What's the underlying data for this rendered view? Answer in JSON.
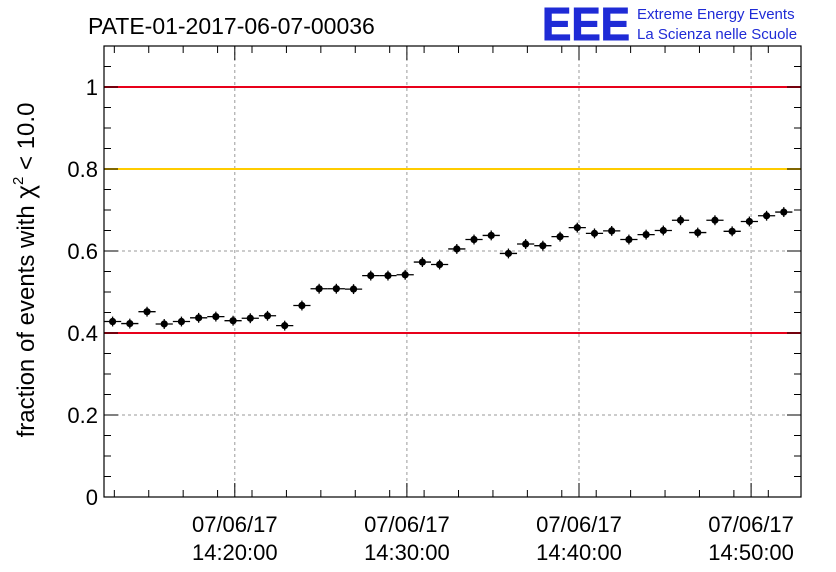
{
  "header": {
    "run_title": "PATE-01-2017-06-07-00036",
    "logo_letters": "EEE",
    "logo_line1": "Extreme Energy Events",
    "logo_line2": "La Scienza nelle Scuole"
  },
  "colors": {
    "red_line": "#e8001a",
    "yellow_line": "#ffcc00",
    "logo": "#1f2bd6",
    "grid": "#9a9a9a"
  },
  "chart_data": {
    "type": "scatter",
    "title": "PATE-01-2017-06-07-00036",
    "ylabel_parts": [
      "fraction of events with ",
      "χ",
      "2",
      " < 10.0"
    ],
    "xlabel": "",
    "xlim": [
      8.2,
      48.7
    ],
    "ylim": [
      0,
      1.1
    ],
    "grid": true,
    "x_ticks": [
      {
        "value": 15.8,
        "date": "07/06/17",
        "time": "14:20:00"
      },
      {
        "value": 25.8,
        "date": "07/06/17",
        "time": "14:30:00"
      },
      {
        "value": 35.8,
        "date": "07/06/17",
        "time": "14:40:00"
      },
      {
        "value": 45.8,
        "date": "07/06/17",
        "time": "14:50:00"
      }
    ],
    "y_ticks": [
      {
        "value": 0,
        "label": "0"
      },
      {
        "value": 0.2,
        "label": "0.2"
      },
      {
        "value": 0.4,
        "label": "0.4"
      },
      {
        "value": 0.6,
        "label": "0.6"
      },
      {
        "value": 0.8,
        "label": "0.8"
      },
      {
        "value": 1,
        "label": "1"
      }
    ],
    "reference_lines": [
      {
        "y": 1.0,
        "color": "#e8001a"
      },
      {
        "y": 0.8,
        "color": "#ffcc00"
      },
      {
        "y": 0.4,
        "color": "#e8001a"
      }
    ],
    "x_bin_width_min": 1,
    "points": [
      {
        "x": 8.7,
        "y": 0.428,
        "err": 0.012
      },
      {
        "x": 9.7,
        "y": 0.423,
        "err": 0.012
      },
      {
        "x": 10.7,
        "y": 0.452,
        "err": 0.012
      },
      {
        "x": 11.7,
        "y": 0.422,
        "err": 0.012
      },
      {
        "x": 12.7,
        "y": 0.428,
        "err": 0.012
      },
      {
        "x": 13.7,
        "y": 0.437,
        "err": 0.012
      },
      {
        "x": 14.7,
        "y": 0.44,
        "err": 0.012
      },
      {
        "x": 15.7,
        "y": 0.43,
        "err": 0.012
      },
      {
        "x": 16.7,
        "y": 0.436,
        "err": 0.012
      },
      {
        "x": 17.7,
        "y": 0.442,
        "err": 0.012
      },
      {
        "x": 18.7,
        "y": 0.418,
        "err": 0.012
      },
      {
        "x": 19.7,
        "y": 0.467,
        "err": 0.012
      },
      {
        "x": 20.7,
        "y": 0.508,
        "err": 0.012
      },
      {
        "x": 21.7,
        "y": 0.508,
        "err": 0.012
      },
      {
        "x": 22.7,
        "y": 0.507,
        "err": 0.012
      },
      {
        "x": 23.7,
        "y": 0.54,
        "err": 0.012
      },
      {
        "x": 24.7,
        "y": 0.54,
        "err": 0.012
      },
      {
        "x": 25.7,
        "y": 0.542,
        "err": 0.012
      },
      {
        "x": 26.7,
        "y": 0.573,
        "err": 0.012
      },
      {
        "x": 27.7,
        "y": 0.567,
        "err": 0.012
      },
      {
        "x": 28.7,
        "y": 0.605,
        "err": 0.012
      },
      {
        "x": 29.7,
        "y": 0.628,
        "err": 0.012
      },
      {
        "x": 30.7,
        "y": 0.638,
        "err": 0.012
      },
      {
        "x": 31.7,
        "y": 0.594,
        "err": 0.012
      },
      {
        "x": 32.7,
        "y": 0.617,
        "err": 0.012
      },
      {
        "x": 33.7,
        "y": 0.613,
        "err": 0.012
      },
      {
        "x": 34.7,
        "y": 0.635,
        "err": 0.012
      },
      {
        "x": 35.7,
        "y": 0.657,
        "err": 0.012
      },
      {
        "x": 36.7,
        "y": 0.643,
        "err": 0.012
      },
      {
        "x": 37.7,
        "y": 0.649,
        "err": 0.012
      },
      {
        "x": 38.7,
        "y": 0.628,
        "err": 0.012
      },
      {
        "x": 39.7,
        "y": 0.64,
        "err": 0.012
      },
      {
        "x": 40.7,
        "y": 0.65,
        "err": 0.012
      },
      {
        "x": 41.7,
        "y": 0.675,
        "err": 0.012
      },
      {
        "x": 42.7,
        "y": 0.645,
        "err": 0.012
      },
      {
        "x": 43.7,
        "y": 0.675,
        "err": 0.012
      },
      {
        "x": 44.7,
        "y": 0.648,
        "err": 0.012
      },
      {
        "x": 45.7,
        "y": 0.672,
        "err": 0.012
      },
      {
        "x": 46.7,
        "y": 0.686,
        "err": 0.012
      },
      {
        "x": 47.7,
        "y": 0.695,
        "err": 0.012
      }
    ]
  }
}
